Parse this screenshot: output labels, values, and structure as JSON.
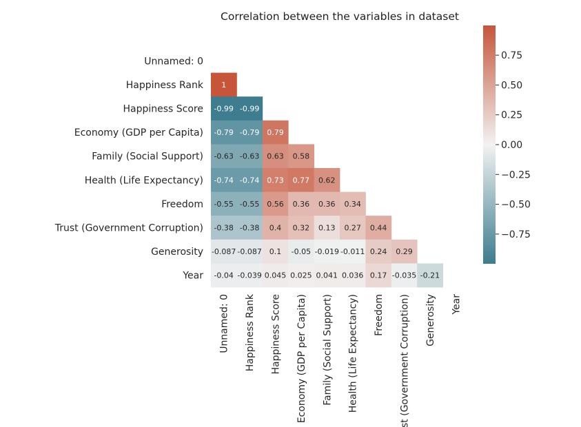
{
  "chart_data": {
    "type": "heatmap",
    "title": "Correlation between the variables in dataset",
    "row_labels": [
      "Unnamed: 0",
      "Happiness Rank",
      "Happiness Score",
      "Economy (GDP per Capita)",
      "Family (Social Support)",
      "Health (Life Expectancy)",
      "Freedom",
      "Trust (Government Corruption)",
      "Generosity",
      "Year"
    ],
    "col_labels": [
      "Unnamed: 0",
      "Happiness Rank",
      "Happiness Score",
      "Economy (GDP per Capita)",
      "Family (Social Support)",
      "Health (Life Expectancy)",
      "Freedom",
      "Trust (Government Corruption)",
      "Generosity",
      "Year"
    ],
    "cells": [
      {
        "row": 1,
        "col": 0,
        "value": 1,
        "label": "1"
      },
      {
        "row": 2,
        "col": 0,
        "value": -0.99,
        "label": "-0.99"
      },
      {
        "row": 2,
        "col": 1,
        "value": -0.99,
        "label": "-0.99"
      },
      {
        "row": 3,
        "col": 0,
        "value": -0.79,
        "label": "-0.79"
      },
      {
        "row": 3,
        "col": 1,
        "value": -0.79,
        "label": "-0.79"
      },
      {
        "row": 3,
        "col": 2,
        "value": 0.79,
        "label": "0.79"
      },
      {
        "row": 4,
        "col": 0,
        "value": -0.63,
        "label": "-0.63"
      },
      {
        "row": 4,
        "col": 1,
        "value": -0.63,
        "label": "-0.63"
      },
      {
        "row": 4,
        "col": 2,
        "value": 0.63,
        "label": "0.63"
      },
      {
        "row": 4,
        "col": 3,
        "value": 0.58,
        "label": "0.58"
      },
      {
        "row": 5,
        "col": 0,
        "value": -0.74,
        "label": "-0.74"
      },
      {
        "row": 5,
        "col": 1,
        "value": -0.74,
        "label": "-0.74"
      },
      {
        "row": 5,
        "col": 2,
        "value": 0.73,
        "label": "0.73"
      },
      {
        "row": 5,
        "col": 3,
        "value": 0.77,
        "label": "0.77"
      },
      {
        "row": 5,
        "col": 4,
        "value": 0.62,
        "label": "0.62"
      },
      {
        "row": 6,
        "col": 0,
        "value": -0.55,
        "label": "-0.55"
      },
      {
        "row": 6,
        "col": 1,
        "value": -0.55,
        "label": "-0.55"
      },
      {
        "row": 6,
        "col": 2,
        "value": 0.56,
        "label": "0.56"
      },
      {
        "row": 6,
        "col": 3,
        "value": 0.36,
        "label": "0.36"
      },
      {
        "row": 6,
        "col": 4,
        "value": 0.36,
        "label": "0.36"
      },
      {
        "row": 6,
        "col": 5,
        "value": 0.34,
        "label": "0.34"
      },
      {
        "row": 7,
        "col": 0,
        "value": -0.38,
        "label": "-0.38"
      },
      {
        "row": 7,
        "col": 1,
        "value": -0.38,
        "label": "-0.38"
      },
      {
        "row": 7,
        "col": 2,
        "value": 0.4,
        "label": "0.4"
      },
      {
        "row": 7,
        "col": 3,
        "value": 0.32,
        "label": "0.32"
      },
      {
        "row": 7,
        "col": 4,
        "value": 0.13,
        "label": "0.13"
      },
      {
        "row": 7,
        "col": 5,
        "value": 0.27,
        "label": "0.27"
      },
      {
        "row": 7,
        "col": 6,
        "value": 0.44,
        "label": "0.44"
      },
      {
        "row": 8,
        "col": 0,
        "value": -0.087,
        "label": "-0.087"
      },
      {
        "row": 8,
        "col": 1,
        "value": -0.087,
        "label": "-0.087"
      },
      {
        "row": 8,
        "col": 2,
        "value": 0.1,
        "label": "0.1"
      },
      {
        "row": 8,
        "col": 3,
        "value": -0.05,
        "label": "-0.05"
      },
      {
        "row": 8,
        "col": 4,
        "value": -0.019,
        "label": "-0.019"
      },
      {
        "row": 8,
        "col": 5,
        "value": -0.011,
        "label": "-0.011"
      },
      {
        "row": 8,
        "col": 6,
        "value": 0.24,
        "label": "0.24"
      },
      {
        "row": 8,
        "col": 7,
        "value": 0.29,
        "label": "0.29"
      },
      {
        "row": 9,
        "col": 0,
        "value": -0.04,
        "label": "-0.04"
      },
      {
        "row": 9,
        "col": 1,
        "value": -0.039,
        "label": "-0.039"
      },
      {
        "row": 9,
        "col": 2,
        "value": 0.045,
        "label": "0.045"
      },
      {
        "row": 9,
        "col": 3,
        "value": 0.025,
        "label": "0.025"
      },
      {
        "row": 9,
        "col": 4,
        "value": 0.041,
        "label": "0.041"
      },
      {
        "row": 9,
        "col": 5,
        "value": 0.036,
        "label": "0.036"
      },
      {
        "row": 9,
        "col": 6,
        "value": 0.17,
        "label": "0.17"
      },
      {
        "row": 9,
        "col": 7,
        "value": -0.035,
        "label": "-0.035"
      },
      {
        "row": 9,
        "col": 8,
        "value": -0.21,
        "label": "-0.21"
      }
    ],
    "colorbar": {
      "range": [
        -1,
        1
      ],
      "ticks": [
        0.75,
        0.5,
        0.25,
        0.0,
        -0.25,
        -0.5,
        -0.75
      ],
      "tick_labels": [
        "0.75",
        "0.50",
        "0.25",
        "0.00",
        "−0.25",
        "−0.50",
        "−0.75"
      ],
      "color_low": "#3b7c8e",
      "color_mid": "#f2f2f2",
      "color_high": "#c6553a"
    },
    "mask": "upper-triangle",
    "grid": false
  }
}
